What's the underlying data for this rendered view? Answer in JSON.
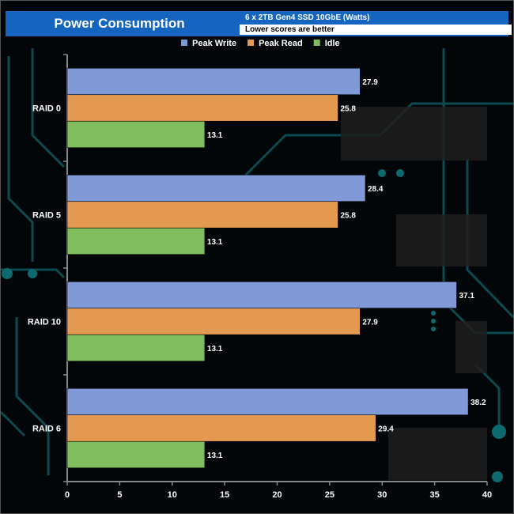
{
  "chart_data": {
    "type": "bar",
    "orientation": "horizontal",
    "title": "Power Consumption",
    "subtitle": "6 x 2TB Gen4 SSD 10GbE  (Watts)",
    "note": "Lower scores are better",
    "categories": [
      "RAID 0",
      "RAID 5",
      "RAID 10",
      "RAID 6"
    ],
    "series": [
      {
        "name": "Peak Write",
        "color": "#7f9ad6",
        "values": [
          27.9,
          28.4,
          37.1,
          38.2
        ]
      },
      {
        "name": "Peak Read",
        "color": "#e3994f",
        "values": [
          25.8,
          25.8,
          27.9,
          29.4
        ]
      },
      {
        "name": "Idle",
        "color": "#7fbd5e",
        "values": [
          13.1,
          13.1,
          13.1,
          13.1
        ]
      }
    ],
    "xlim": [
      0,
      40
    ],
    "xticks": [
      0,
      5,
      10,
      15,
      20,
      25,
      30,
      35,
      40
    ],
    "legend_position": "top",
    "xlabel": "",
    "ylabel": ""
  }
}
